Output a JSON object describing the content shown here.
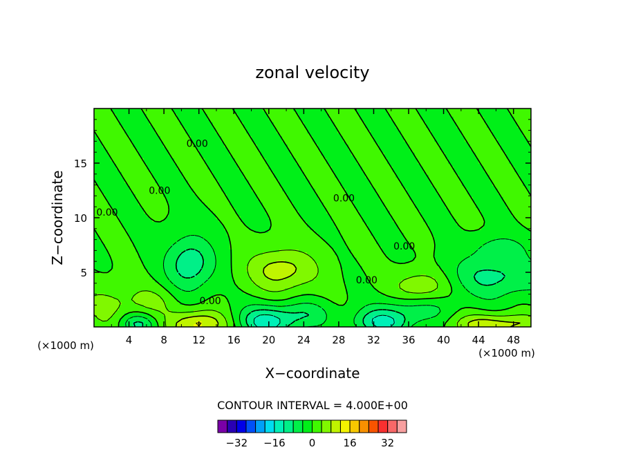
{
  "chart_data": {
    "type": "heatmap",
    "title": "zonal velocity",
    "xlabel": "X−coordinate",
    "ylabel": "Z−coordinate",
    "x_unit_left": "(×1000 m)",
    "x_unit_right": "(×1000 m)",
    "xlim": [
      0,
      50
    ],
    "ylim": [
      0,
      20
    ],
    "x_ticks": [
      4,
      8,
      12,
      16,
      20,
      24,
      28,
      32,
      36,
      40,
      44,
      48
    ],
    "y_ticks": [
      5,
      10,
      15
    ],
    "contour_interval_text": "CONTOUR INTERVAL = 4.000E+00",
    "contour_labels": [
      {
        "text": "0.00",
        "x": 11.8,
        "z": 16.8
      },
      {
        "text": "0.00",
        "x": 7.5,
        "z": 12.5
      },
      {
        "text": "0.00",
        "x": 1.5,
        "z": 10.5
      },
      {
        "text": "0.00",
        "x": 28.6,
        "z": 11.8
      },
      {
        "text": "0.00",
        "x": 35.5,
        "z": 7.4
      },
      {
        "text": "0.00",
        "x": 31.2,
        "z": 4.3
      },
      {
        "text": "0.00",
        "x": 13.3,
        "z": 2.4
      }
    ],
    "colorbar": {
      "colors": [
        "#7a00a8",
        "#2a00b4",
        "#0000e8",
        "#0050f8",
        "#00a0f8",
        "#00dcf0",
        "#00f0b8",
        "#00f088",
        "#00f048",
        "#00f018",
        "#40f800",
        "#80f800",
        "#c0f400",
        "#f4f400",
        "#f8c800",
        "#f89000",
        "#f85400",
        "#f83030",
        "#f86868",
        "#f8a0a0"
      ],
      "tick_labels": [
        "−32",
        "−16",
        "0",
        "16",
        "32"
      ],
      "tick_values": [
        -32,
        -16,
        0,
        16,
        32
      ],
      "bounds": [
        -40,
        40
      ]
    },
    "features": [
      {
        "x": 20,
        "z": 0.5,
        "sx": 2.5,
        "sz": 1.0,
        "amp": -14
      },
      {
        "x": 33,
        "z": 0.4,
        "sx": 2.5,
        "sz": 0.9,
        "amp": -12
      },
      {
        "x": 5,
        "z": 0.3,
        "sx": 1.5,
        "sz": 0.7,
        "amp": -9
      },
      {
        "x": 11,
        "z": 5.8,
        "sx": 2.0,
        "sz": 1.8,
        "amp": -11
      },
      {
        "x": 46,
        "z": 4.6,
        "sx": 4.0,
        "sz": 1.4,
        "amp": -9
      },
      {
        "x": 46.5,
        "z": 7.2,
        "sx": 2.0,
        "sz": 0.8,
        "amp": -6
      },
      {
        "x": 37,
        "z": 1.8,
        "sx": 3.0,
        "sz": 1.0,
        "amp": -6
      },
      {
        "x": 24.5,
        "z": 1.3,
        "sx": 2.0,
        "sz": 0.8,
        "amp": -5
      },
      {
        "x": 12,
        "z": 0.2,
        "sx": 2.2,
        "sz": 0.9,
        "amp": 14
      },
      {
        "x": 46,
        "z": 0.2,
        "sx": 3.5,
        "sz": 0.7,
        "amp": 11
      },
      {
        "x": 21.5,
        "z": 5.2,
        "sx": 2.8,
        "sz": 1.4,
        "amp": 10
      },
      {
        "x": 37.5,
        "z": 3.6,
        "sx": 2.2,
        "sz": 1.1,
        "amp": 9
      },
      {
        "x": 2,
        "z": 2.0,
        "sx": 2.5,
        "sz": 1.5,
        "amp": 5
      },
      {
        "x": 7,
        "z": 2.4,
        "sx": 2.0,
        "sz": 1.0,
        "amp": 4
      }
    ]
  }
}
